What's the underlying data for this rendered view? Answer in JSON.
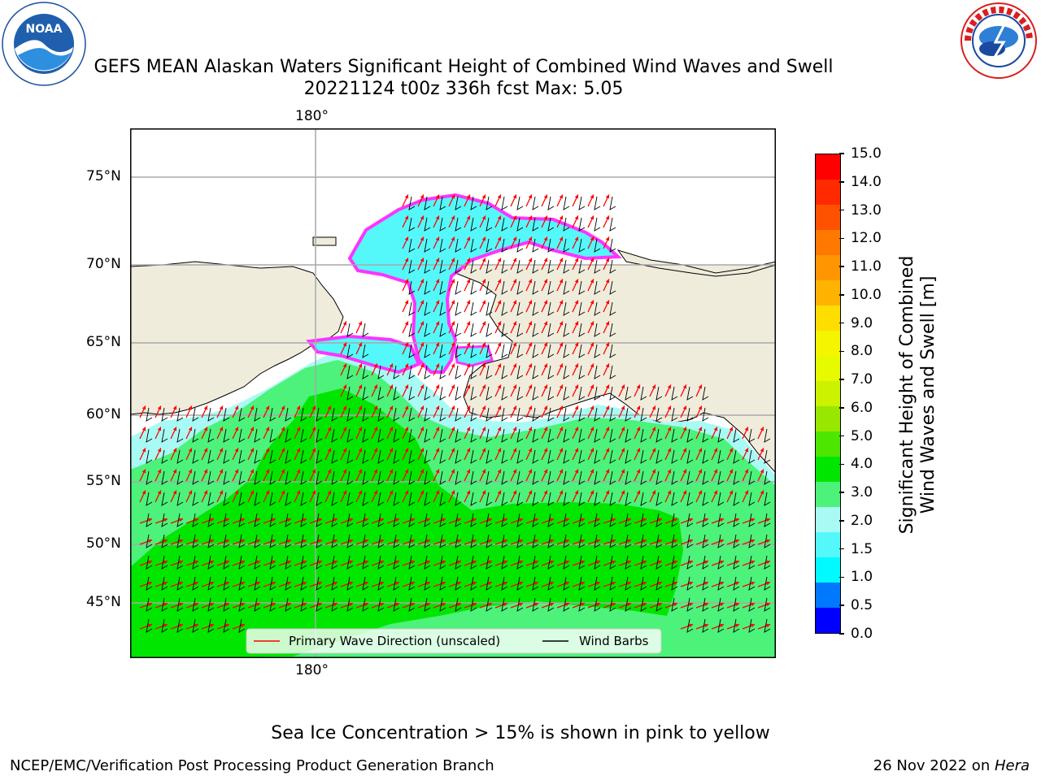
{
  "header": {
    "title_line1": "GEFS MEAN Alaskan Waters Significant Height of Combined Wind Waves and Swell",
    "title_line2": "20221124 t00z 336h fcst   Max: 5.05",
    "noaa_logo_text": "NOAA",
    "noaa_ring_text": "NATIONAL OCEANIC AND ATMOSPHERIC ADMINISTRATION · U.S. DEPARTMENT OF COMMERCE",
    "nws_ring_text": "NATIONAL WEATHER SERVICE"
  },
  "map": {
    "lon_label_top": "180°",
    "lon_label_bottom": "180°",
    "lat_labels": [
      "75°N",
      "70°N",
      "65°N",
      "60°N",
      "55°N",
      "50°N",
      "45°N"
    ],
    "colors": {
      "land": "#efecdc",
      "ocean_high": "#00e600",
      "ocean_mid": "#4cf27a",
      "ocean_low": "#a8fbf4",
      "ice": "#55f8fa",
      "ice_edge": "#ff33ff",
      "wave_arrow": "#ff0000",
      "wind_barb": "#000000"
    }
  },
  "legend": {
    "primary": "Primary Wave Direction (unscaled)",
    "wind": "Wind Barbs"
  },
  "colorbar": {
    "label_line1": "Significant Height of Combined",
    "label_line2": "Wind Waves and Swell [m]",
    "ticks": [
      "15.0",
      "14.0",
      "13.0",
      "12.0",
      "11.0",
      "10.0",
      "9.0",
      "8.0",
      "7.0",
      "6.0",
      "5.0",
      "4.0",
      "3.0",
      "2.0",
      "1.5",
      "1.0",
      "0.5",
      "0.0"
    ],
    "colors_top_to_bottom": [
      "#ff0000",
      "#ff2a00",
      "#ff5200",
      "#ff7800",
      "#ff9500",
      "#ffb300",
      "#ffdd00",
      "#f5f500",
      "#e6fa00",
      "#ccf200",
      "#99e600",
      "#4ce600",
      "#00e600",
      "#4cf27a",
      "#a8fbf4",
      "#55f8fa",
      "#00faff",
      "#0078ff",
      "#0000ff"
    ]
  },
  "notes": {
    "sea_ice": "Sea Ice Concentration > 15% is shown in pink to yellow",
    "credit": "NCEP/EMC/Verification Post Processing Product Generation Branch",
    "date": "26 Nov 2022 on ",
    "machine": "Hera"
  }
}
